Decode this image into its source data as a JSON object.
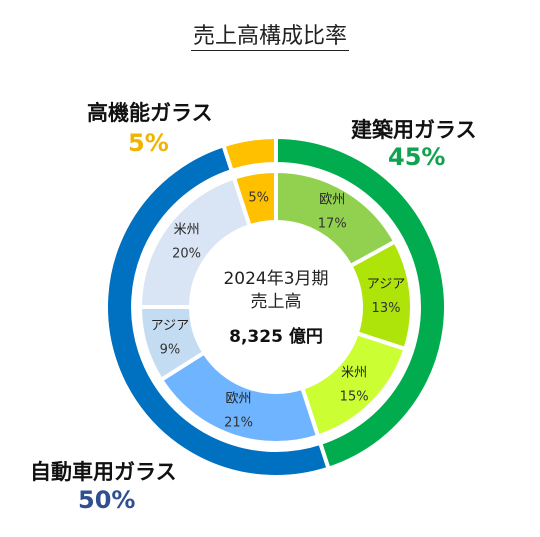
{
  "chart_data": {
    "type": "donut",
    "title": "売上高構成比率",
    "center": {
      "line1": "2024年3月期",
      "line2": "売上高",
      "line3": "8,325 億円"
    },
    "outer": [
      {
        "label": "建築用ガラス",
        "value": 45,
        "display": "45%",
        "color": "#00ac4e",
        "pct_color": "#10a24f"
      },
      {
        "label": "自動車用ガラス",
        "value": 50,
        "display": "50%",
        "color": "#0070c0",
        "pct_color": "#2f4f8f"
      },
      {
        "label": "高機能ガラス",
        "value": 5,
        "display": "5%",
        "color": "#ffc000",
        "pct_color": "#f0b400"
      }
    ],
    "inner": [
      {
        "group": "建築用ガラス",
        "region": "欧州",
        "value": 17,
        "display": "17%",
        "color": "#92d050"
      },
      {
        "group": "建築用ガラス",
        "region": "アジア",
        "value": 13,
        "display": "13%",
        "color": "#aee40a"
      },
      {
        "group": "建築用ガラス",
        "region": "米州",
        "value": 15,
        "display": "15%",
        "color": "#ccff33"
      },
      {
        "group": "自動車用ガラス",
        "region": "欧州",
        "value": 21,
        "display": "21%",
        "color": "#6fb4ff"
      },
      {
        "group": "自動車用ガラス",
        "region": "アジア",
        "value": 9,
        "display": "9%",
        "color": "#c4dcf2"
      },
      {
        "group": "自動車用ガラス",
        "region": "米州",
        "value": 20,
        "display": "20%",
        "color": "#d9e4f4"
      },
      {
        "group": "高機能ガラス",
        "region": "",
        "value": 5,
        "display": "5%",
        "color": "#ffc000"
      }
    ]
  }
}
